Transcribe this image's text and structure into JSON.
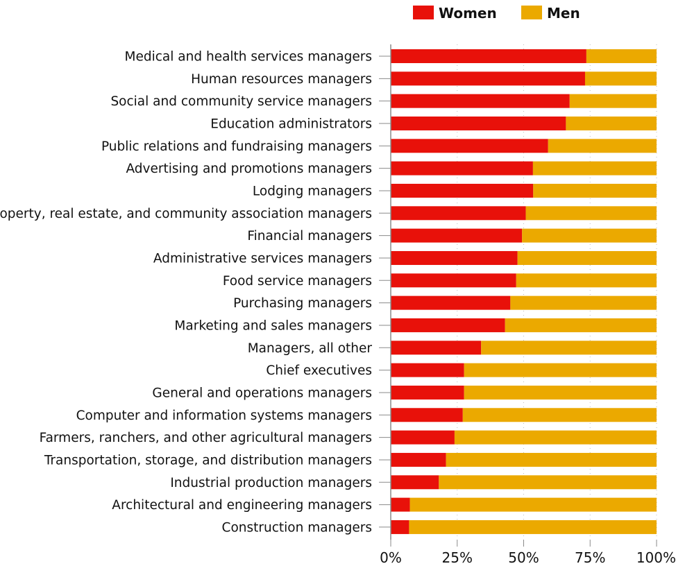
{
  "chart_data": {
    "type": "bar",
    "orientation": "horizontal",
    "stacked": true,
    "categories": [
      "Medical and health services managers",
      "Human resources managers",
      "Social and community service managers",
      "Education administrators",
      "Public relations and fundraising managers",
      "Advertising and promotions managers",
      "Lodging managers",
      "Property, real estate, and community association managers",
      "Financial managers",
      "Administrative services managers",
      "Food service managers",
      "Purchasing managers",
      "Marketing and sales managers",
      "Managers, all other",
      "Chief executives",
      "General and operations managers",
      "Computer and information systems managers",
      "Farmers, ranchers, and other agricultural managers",
      "Transportation, storage, and distribution managers",
      "Industrial production managers",
      "Architectural and engineering managers",
      "Construction managers"
    ],
    "series": [
      {
        "name": "Women",
        "color": "#e8110a",
        "values": [
          73.6,
          73.1,
          67.3,
          65.9,
          59.2,
          53.5,
          53.6,
          50.8,
          49.4,
          47.7,
          47.2,
          45.0,
          43.0,
          34.0,
          27.6,
          27.6,
          27.1,
          24.0,
          20.8,
          18.1,
          7.2,
          6.9
        ]
      },
      {
        "name": "Men",
        "color": "#eba900",
        "values": [
          26.4,
          26.9,
          32.7,
          34.1,
          40.8,
          46.5,
          46.4,
          49.2,
          50.6,
          52.3,
          52.8,
          55.0,
          57.0,
          66.0,
          72.4,
          72.4,
          72.9,
          76.0,
          79.2,
          81.9,
          92.8,
          93.1
        ]
      }
    ],
    "xlim": [
      0,
      100
    ],
    "x_ticks": [
      "0%",
      "25%",
      "50%",
      "75%",
      "100%"
    ],
    "grid": true,
    "legend": "top"
  }
}
